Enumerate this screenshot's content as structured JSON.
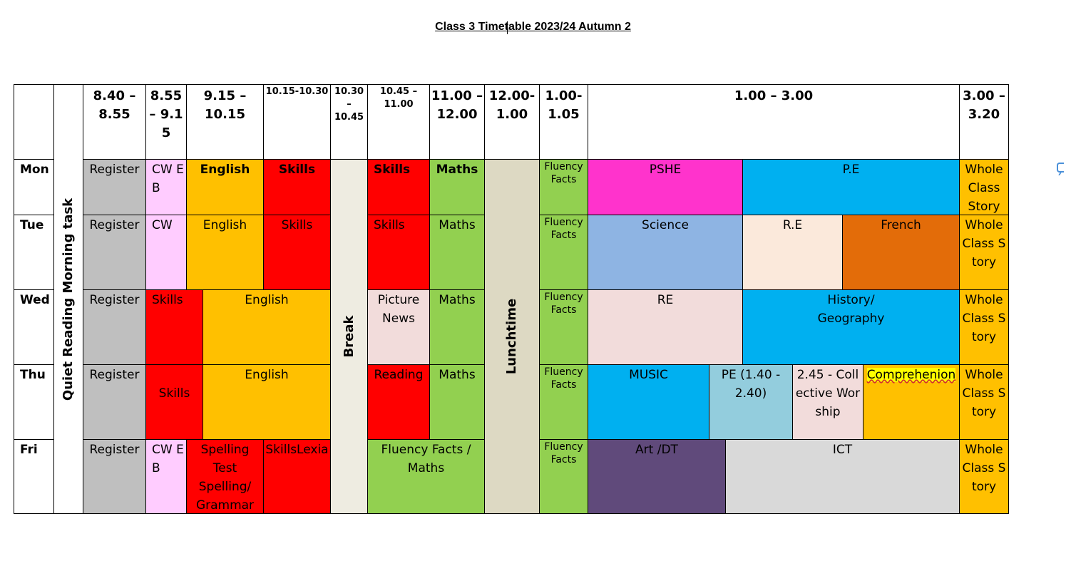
{
  "title": "Class 3 Timetable 2023/24 Autumn 2",
  "colors": {
    "grey": "#bfbfbf",
    "pink": "#ffccff",
    "orange": "#ffc000",
    "red": "#ff0000",
    "green": "#92d050",
    "magenta": "#ff33cc",
    "blue": "#00b0f0",
    "lightblue": "#8eb4e3",
    "peach": "#fbe9db",
    "darkorange": "#e36c09",
    "rosy": "#f2dcdb",
    "paleblue": "#93cddd",
    "purple": "#604a7b",
    "lightgrey": "#d9d9d9",
    "breakbg": "#eeece1",
    "lunchbg": "#ddd9c3"
  },
  "headers": {
    "t1": "8.40 – 8.55",
    "t2": "8.55 – 9.15",
    "t3": "9.15 – 10.15",
    "t4": "10.15-10.30",
    "t5": "10.30 – 10.45",
    "t6": "10.45 – 11.00",
    "t7": "11.00 – 12.00",
    "t8": "12.00-1.00",
    "t9": "1.00-1.05",
    "t10": "1.00 – 3.00",
    "t11": "3.00 – 3.20"
  },
  "days": {
    "mon": "Mon",
    "tue": "Tue",
    "wed": "Wed",
    "thu": "Thu",
    "fri": "Fri"
  },
  "spans": {
    "quiet_reading": "Quiet Reading Morning task",
    "break": "Break",
    "lunchtime": "Lunchtime"
  },
  "mon": {
    "register": "Register",
    "cw": "CW EB",
    "english": "English",
    "skills1": "Skills",
    "skills2": "Skills",
    "maths": "Maths",
    "fluency": "Fluency Facts",
    "pshe": "PSHE",
    "pe": "P.E",
    "story": "Whole Class Story"
  },
  "tue": {
    "register": "Register",
    "cw": "CW",
    "english": "English",
    "skills1": "Skills",
    "skills2": "Skills",
    "maths": "Maths",
    "fluency": "Fluency Facts",
    "science": "Science",
    "re": "R.E",
    "french": "French",
    "story": "Whole Class Story"
  },
  "wed": {
    "register": "Register",
    "skills": "Skills",
    "english": "English",
    "picture_news": "Picture News",
    "maths": "Maths",
    "fluency": "Fluency Facts",
    "re": "RE",
    "history": "History/ Geography",
    "story": "Whole Class Story"
  },
  "thu": {
    "register": "Register",
    "skills": "Skills",
    "english": "English",
    "reading": "Reading",
    "maths": "Maths",
    "fluency": "Fluency Facts",
    "music": "MUSIC",
    "pe": "PE (1.40 - 2.40)",
    "worship": "2.45 - Collective Worship",
    "comprehension": "Comprehenion",
    "story": "Whole Class Story"
  },
  "fri": {
    "register": "Register",
    "cw": "CW EB",
    "spelling": "Spelling Test Spelling/ Grammar",
    "skills_lexia": "SkillsLexia",
    "fluency_maths": "Fluency Facts / Maths",
    "fluency": "Fluency Facts",
    "art": "Art /DT",
    "ict": "ICT",
    "story": "Whole Class Story"
  }
}
